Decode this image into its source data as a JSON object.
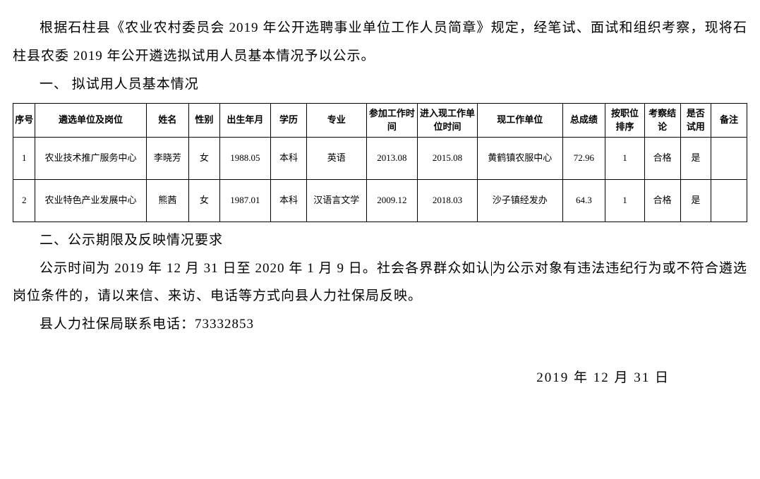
{
  "intro": {
    "p1": "根据石柱县《农业农村委员会 2019 年公开选聘事业单位工作人员简章》规定，经笔试、面试和组织考察，现将石柱县农委 2019 年公开遴选拟试用人员基本情况予以公示。"
  },
  "section1": {
    "heading": "一、 拟试用人员基本情况"
  },
  "table": {
    "headers": {
      "seq": "序号",
      "unit": "遴选单位及岗位",
      "name": "姓名",
      "gender": "性别",
      "birth": "出生年月",
      "edu": "学历",
      "major": "专业",
      "worktime": "参加工作时间",
      "curworktime": "进入现工作单位时间",
      "curunit": "现工作单位",
      "score": "总成绩",
      "rank": "按职位排序",
      "eval": "考察结论",
      "trial": "是否试用",
      "note": "备注"
    },
    "rows": [
      {
        "seq": "1",
        "unit": "农业技术推广服务中心",
        "name": "李晓芳",
        "gender": "女",
        "birth": "1988.05",
        "edu": "本科",
        "major": "英语",
        "worktime": "2013.08",
        "curworktime": "2015.08",
        "curunit": "黄鹤镇农服中心",
        "score": "72.96",
        "rank": "1",
        "eval": "合格",
        "trial": "是",
        "note": ""
      },
      {
        "seq": "2",
        "unit": "农业特色产业发展中心",
        "name": "熊茜",
        "gender": "女",
        "birth": "1987.01",
        "edu": "本科",
        "major": "汉语言文学",
        "worktime": "2009.12",
        "curworktime": "2018.03",
        "curunit": "沙子镇经发办",
        "score": "64.3",
        "rank": "1",
        "eval": "合格",
        "trial": "是",
        "note": ""
      }
    ]
  },
  "section2": {
    "heading": "二、公示期限及反映情况要求",
    "p1a": "公示时间为 2019 年 12 月 31 日至 2020 年 1 月 9 日。社会各界群众如认",
    "p1b": "为公示对象有违法违纪行为或不符合遴选岗位条件的，请以来信、来访、电话等方式向县人力社保局反映。",
    "p2": "县人力社保局联系电话：73332853"
  },
  "date": "2019 年 12 月 31 日",
  "styles": {
    "body_font_size": 19,
    "table_font_size": 13,
    "text_color": "#000000",
    "background_color": "#ffffff",
    "border_color": "#000000"
  }
}
